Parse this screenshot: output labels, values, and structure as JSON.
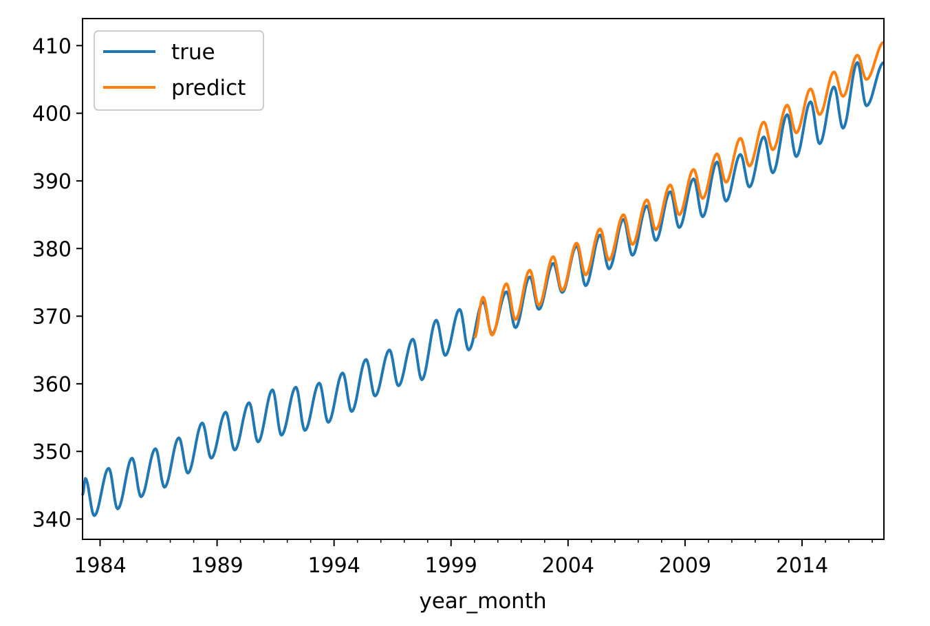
{
  "chart_data": {
    "type": "line",
    "title": "",
    "xlabel": "year_month",
    "ylabel": "",
    "xlim": [
      1983.25,
      2017.5
    ],
    "ylim": [
      337,
      414
    ],
    "x_ticks": [
      1984,
      1989,
      1994,
      1999,
      2004,
      2009,
      2014
    ],
    "x_tick_labels": [
      "1984",
      "1989",
      "1994",
      "1999",
      "2004",
      "2009",
      "2014"
    ],
    "y_ticks": [
      340,
      350,
      360,
      370,
      380,
      390,
      400,
      410
    ],
    "y_tick_labels": [
      "340",
      "350",
      "360",
      "370",
      "380",
      "390",
      "400",
      "410"
    ],
    "x_minor_ticks_per_year": true,
    "grid": false,
    "legend_position": "top-left",
    "series": [
      {
        "name": "true",
        "color": "#1f77b4",
        "x_start": 1983.25,
        "x_end": 2017.5,
        "start_value": 343.5,
        "end_value": 407.5,
        "trend_anchors": [
          [
            1983.25,
            343.5
          ],
          [
            1990,
            354.0
          ],
          [
            1995,
            360.5
          ],
          [
            2000,
            368.7
          ],
          [
            2005,
            379.0
          ],
          [
            2010,
            389.5
          ],
          [
            2017.5,
            404.7
          ]
        ],
        "seasonal_amplitude": 3.2,
        "seasonal_peak_month": 5,
        "annual_peaks": [
          [
            1983.37,
            346.0
          ],
          [
            1984.37,
            347.5
          ],
          [
            1985.37,
            349.0
          ],
          [
            1986.37,
            350.4
          ],
          [
            1987.37,
            352.0
          ],
          [
            1988.37,
            354.2
          ],
          [
            1989.37,
            355.8
          ],
          [
            1990.37,
            357.2
          ],
          [
            1991.37,
            359.1
          ],
          [
            1992.37,
            359.5
          ],
          [
            1993.37,
            360.1
          ],
          [
            1994.37,
            361.6
          ],
          [
            1995.37,
            363.6
          ],
          [
            1996.37,
            365.0
          ],
          [
            1997.37,
            366.6
          ],
          [
            1998.37,
            369.4
          ],
          [
            1999.37,
            371.0
          ],
          [
            2000.37,
            372.1
          ],
          [
            2001.37,
            373.6
          ],
          [
            2002.37,
            375.8
          ],
          [
            2003.37,
            377.8
          ],
          [
            2004.37,
            380.4
          ],
          [
            2005.37,
            382.0
          ],
          [
            2006.37,
            384.3
          ],
          [
            2007.37,
            386.3
          ],
          [
            2008.37,
            388.4
          ],
          [
            2009.37,
            390.3
          ],
          [
            2010.37,
            392.8
          ],
          [
            2011.37,
            393.9
          ],
          [
            2012.37,
            396.5
          ],
          [
            2013.37,
            399.8
          ],
          [
            2014.37,
            401.7
          ],
          [
            2015.37,
            403.9
          ],
          [
            2016.37,
            407.5
          ]
        ],
        "annual_troughs": [
          [
            1983.75,
            340.5
          ],
          [
            1984.75,
            341.5
          ],
          [
            1985.75,
            343.3
          ],
          [
            1986.75,
            344.7
          ],
          [
            1987.75,
            346.8
          ],
          [
            1988.75,
            349.0
          ],
          [
            1989.75,
            350.2
          ],
          [
            1990.75,
            351.4
          ],
          [
            1991.75,
            352.4
          ],
          [
            1992.75,
            353.1
          ],
          [
            1993.75,
            354.3
          ],
          [
            1994.75,
            355.9
          ],
          [
            1995.75,
            358.2
          ],
          [
            1996.75,
            359.7
          ],
          [
            1997.75,
            360.6
          ],
          [
            1998.75,
            364.2
          ],
          [
            1999.75,
            365.0
          ],
          [
            2000.75,
            367.4
          ],
          [
            2001.75,
            368.3
          ],
          [
            2002.75,
            371.0
          ],
          [
            2003.75,
            373.5
          ],
          [
            2004.75,
            374.5
          ],
          [
            2005.75,
            377.0
          ],
          [
            2006.75,
            379.0
          ],
          [
            2007.75,
            381.2
          ],
          [
            2008.75,
            383.1
          ],
          [
            2009.75,
            384.7
          ],
          [
            2010.75,
            387.0
          ],
          [
            2011.75,
            389.1
          ],
          [
            2012.75,
            391.2
          ],
          [
            2013.75,
            393.6
          ],
          [
            2014.75,
            395.5
          ],
          [
            2015.75,
            397.8
          ],
          [
            2016.75,
            401.1
          ]
        ]
      },
      {
        "name": "predict",
        "color": "#ff7f0e",
        "x_start": 2000.0,
        "x_end": 2017.5,
        "start_value": 366.8,
        "end_value": 410.5,
        "trend_anchors": [
          [
            2000,
            370.0
          ],
          [
            2005,
            380.3
          ],
          [
            2010,
            391.0
          ],
          [
            2017.5,
            407.0
          ]
        ],
        "seasonal_amplitude": 2.8,
        "seasonal_peak_month": 5,
        "annual_peaks": [
          [
            2000.37,
            372.8
          ],
          [
            2001.37,
            374.8
          ],
          [
            2002.37,
            376.8
          ],
          [
            2003.37,
            378.8
          ],
          [
            2004.37,
            380.8
          ],
          [
            2005.37,
            382.9
          ],
          [
            2006.37,
            385.0
          ],
          [
            2007.37,
            387.2
          ],
          [
            2008.37,
            389.4
          ],
          [
            2009.37,
            391.7
          ],
          [
            2010.37,
            394.0
          ],
          [
            2011.37,
            396.3
          ],
          [
            2012.37,
            398.7
          ],
          [
            2013.37,
            401.2
          ],
          [
            2014.37,
            403.6
          ],
          [
            2015.37,
            406.1
          ],
          [
            2016.37,
            408.6
          ]
        ],
        "annual_troughs": [
          [
            2000.75,
            367.2
          ],
          [
            2001.75,
            369.5
          ],
          [
            2002.75,
            371.6
          ],
          [
            2003.75,
            373.8
          ],
          [
            2004.75,
            376.1
          ],
          [
            2005.75,
            378.3
          ],
          [
            2006.75,
            380.6
          ],
          [
            2007.75,
            382.8
          ],
          [
            2008.75,
            385.0
          ],
          [
            2009.75,
            387.4
          ],
          [
            2010.75,
            389.8
          ],
          [
            2011.75,
            392.2
          ],
          [
            2012.75,
            394.6
          ],
          [
            2013.75,
            397.1
          ],
          [
            2014.75,
            399.8
          ],
          [
            2015.75,
            402.5
          ],
          [
            2016.75,
            405.0
          ]
        ]
      }
    ]
  }
}
